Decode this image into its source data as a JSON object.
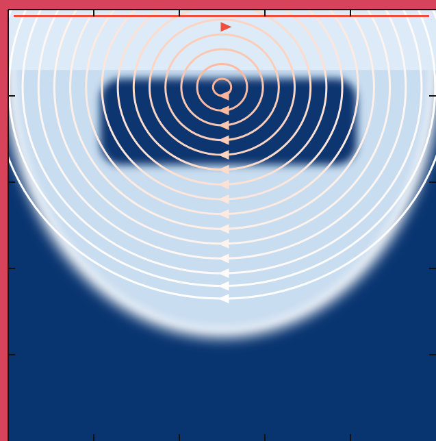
{
  "chart_data": {
    "type": "streamplot",
    "title": "",
    "xlabel": "",
    "ylabel": "",
    "xlim": [
      0,
      1
    ],
    "ylim": [
      0,
      1
    ],
    "grid": false,
    "legend": "none",
    "x_ticks": [
      0.2,
      0.4,
      0.6,
      0.8
    ],
    "y_ticks": [
      0.2,
      0.4,
      0.6,
      0.8
    ],
    "tick_labels_shown": false,
    "colors": {
      "frame_border": "#d6435b",
      "axis_line": "#111111",
      "background_dark": "#083470",
      "background_light": "#c9ddf0",
      "background_band": "#dcebf7",
      "background_pale": "#ffffff",
      "stream_colormap": [
        "#ffffff",
        "#fde0d2",
        "#fcbba1",
        "#fc9272",
        "#ef3b2c"
      ]
    },
    "vortex_center": {
      "x": 0.5,
      "y": 0.82
    },
    "streamlines": [
      {
        "r": 0.02,
        "speed": 0.55
      },
      {
        "r": 0.055,
        "speed": 0.5
      },
      {
        "r": 0.09,
        "speed": 0.42
      },
      {
        "r": 0.125,
        "speed": 0.38
      },
      {
        "r": 0.16,
        "speed": 0.33
      },
      {
        "r": 0.195,
        "speed": 0.28
      },
      {
        "r": 0.23,
        "speed": 0.24
      },
      {
        "r": 0.265,
        "speed": 0.2
      },
      {
        "r": 0.3,
        "speed": 0.17
      },
      {
        "r": 0.335,
        "speed": 0.13
      },
      {
        "r": 0.37,
        "speed": 0.1
      },
      {
        "r": 0.405,
        "speed": 0.07
      },
      {
        "r": 0.44,
        "speed": 0.04
      },
      {
        "r": 0.47,
        "speed": 0.02
      },
      {
        "r": 0.5,
        "speed": 0.0
      }
    ],
    "lid_streamline": {
      "y": 0.985,
      "speed": 0.95
    }
  }
}
